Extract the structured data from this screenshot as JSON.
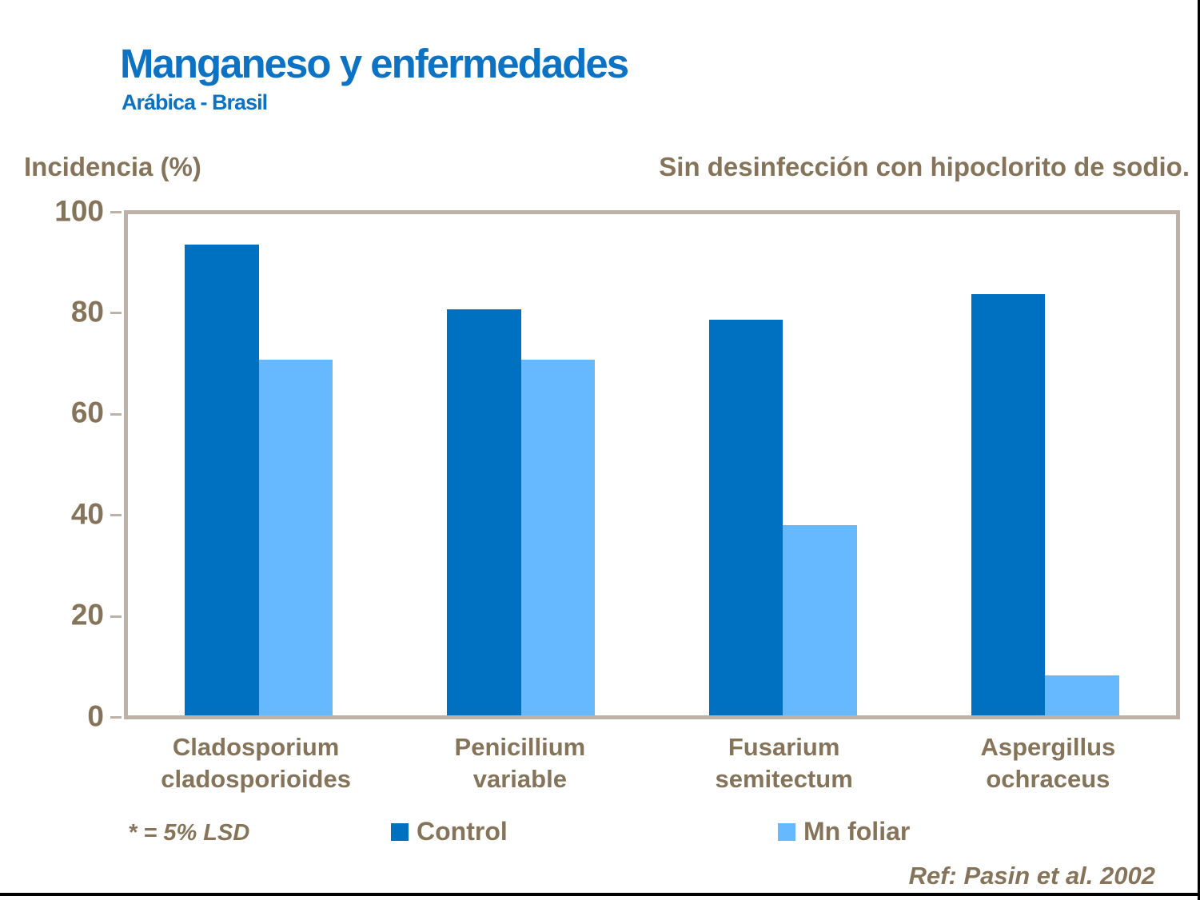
{
  "header": {
    "title": "Manganeso y enfermedades",
    "subtitle": "Arábica - Brasil"
  },
  "axis_label": "Incidencia (%)",
  "annotation": "Sin desinfección con hipoclorito de sodio.",
  "footnote": "* = 5% LSD",
  "reference": "Ref: Pasin et al. 2002",
  "chart_data": {
    "type": "bar",
    "title": "Manganeso y enfermedades",
    "subtitle": "Arábica - Brasil",
    "ylabel": "Incidencia (%)",
    "annotation": "Sin desinfección con hipoclorito de sodio.",
    "categories": [
      "Cladosporium\ncladosporioides",
      "Penicillium\nvariable",
      "Fusarium\nsemitectum",
      "Aspergillus\nochraceus"
    ],
    "series": [
      {
        "name": "Control",
        "color": "#0070C0",
        "values": [
          94,
          81,
          79,
          84
        ]
      },
      {
        "name": "Mn foliar",
        "color": "#66B9FF",
        "values": [
          71,
          71,
          38,
          8
        ]
      }
    ],
    "ylim": [
      0,
      100
    ],
    "yticks": [
      0,
      20,
      40,
      60,
      80,
      100
    ],
    "grid": false,
    "legend_position": "bottom",
    "footnote": "* = 5% LSD",
    "reference": "Ref: Pasin et al. 2002"
  },
  "colors": {
    "title_blue": "#0C72C4",
    "text_brown": "#857459",
    "axis_tan": "#BEB2A8",
    "control_blue": "#0070C0",
    "mn_foliar_blue": "#66B9FF",
    "slide_border_black": "#000000"
  }
}
